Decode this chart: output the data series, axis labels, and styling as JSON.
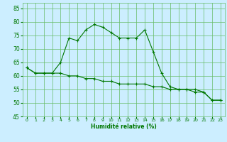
{
  "xlabel": "Humidité relative (%)",
  "background_color": "#cceeff",
  "grid_color": "#66bb66",
  "line_color": "#007700",
  "x": [
    0,
    1,
    2,
    3,
    4,
    5,
    6,
    7,
    8,
    9,
    10,
    11,
    12,
    13,
    14,
    15,
    16,
    17,
    18,
    19,
    20,
    21,
    22,
    23
  ],
  "line1": [
    63,
    61,
    61,
    61,
    65,
    74,
    73,
    77,
    79,
    78,
    76,
    74,
    74,
    74,
    77,
    69,
    61,
    56,
    55,
    55,
    54,
    54,
    51,
    51
  ],
  "line2": [
    63,
    61,
    61,
    61,
    61,
    60,
    60,
    59,
    59,
    58,
    58,
    57,
    57,
    57,
    57,
    56,
    56,
    55,
    55,
    55,
    55,
    54,
    51,
    51
  ],
  "ylim": [
    45,
    87
  ],
  "xlim": [
    -0.5,
    23.5
  ],
  "yticks": [
    45,
    50,
    55,
    60,
    65,
    70,
    75,
    80,
    85
  ],
  "xticks": [
    0,
    1,
    2,
    3,
    4,
    5,
    6,
    7,
    8,
    9,
    10,
    11,
    12,
    13,
    14,
    15,
    16,
    17,
    18,
    19,
    20,
    21,
    22,
    23
  ],
  "xtick_labels": [
    "0",
    "1",
    "2",
    "3",
    "4",
    "5",
    "6",
    "7",
    "8",
    "9",
    "10",
    "11",
    "12",
    "13",
    "14",
    "15",
    "16",
    "17",
    "18",
    "19",
    "20",
    "21",
    "22",
    "23"
  ]
}
